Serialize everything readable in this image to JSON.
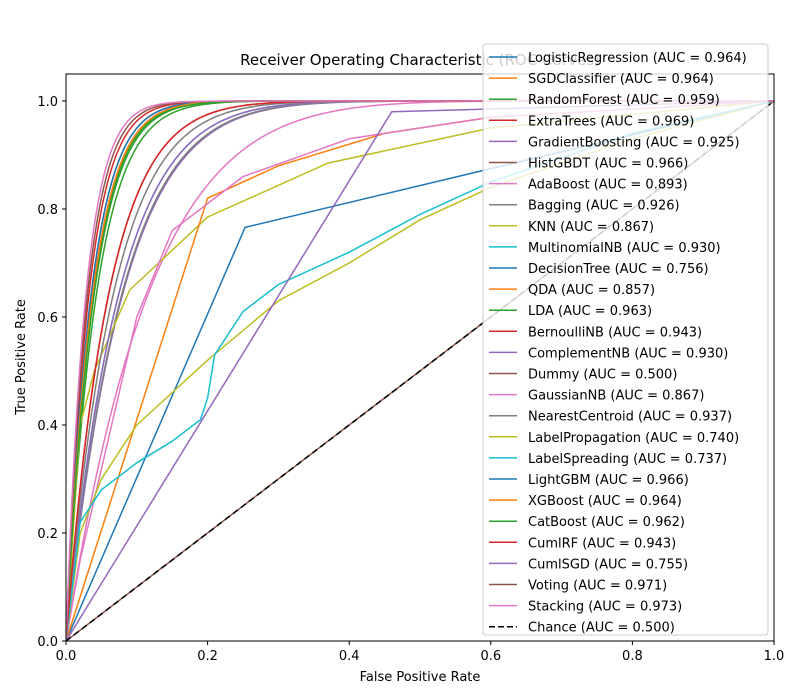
{
  "chart_data": {
    "type": "line",
    "title": "Receiver Operating Characteristic (ROC Curves)",
    "xlabel": "False Positive Rate",
    "ylabel": "True Positive Rate",
    "xlim": [
      0.0,
      1.0
    ],
    "ylim": [
      0.0,
      1.05
    ],
    "xticks": [
      "0.0",
      "0.2",
      "0.4",
      "0.6",
      "0.8",
      "1.0"
    ],
    "yticks": [
      "0.0",
      "0.2",
      "0.4",
      "0.6",
      "0.8",
      "1.0"
    ],
    "grid": false,
    "legend_position": "top-right",
    "series": [
      {
        "name": "LogisticRegression (AUC = 0.964)",
        "color": "#1f77b4",
        "dash": "solid",
        "auc": 0.964
      },
      {
        "name": "SGDClassifier (AUC = 0.964)",
        "color": "#ff7f0e",
        "dash": "solid",
        "auc": 0.964
      },
      {
        "name": "RandomForest (AUC = 0.959)",
        "color": "#2ca02c",
        "dash": "solid",
        "auc": 0.959
      },
      {
        "name": "ExtraTrees (AUC = 0.969)",
        "color": "#d62728",
        "dash": "solid",
        "auc": 0.969
      },
      {
        "name": "GradientBoosting (AUC = 0.925)",
        "color": "#9467bd",
        "dash": "solid",
        "auc": 0.925
      },
      {
        "name": "HistGBDT (AUC = 0.966)",
        "color": "#8c564b",
        "dash": "solid",
        "auc": 0.966
      },
      {
        "name": "AdaBoost (AUC = 0.893)",
        "color": "#e377c2",
        "dash": "solid",
        "auc": 0.893
      },
      {
        "name": "Bagging (AUC = 0.926)",
        "color": "#7f7f7f",
        "dash": "solid",
        "auc": 0.926
      },
      {
        "name": "KNN (AUC = 0.867)",
        "color": "#bcbd22",
        "dash": "solid",
        "points": [
          [
            0,
            0
          ],
          [
            0.02,
            0.4
          ],
          [
            0.04,
            0.5
          ],
          [
            0.09,
            0.65
          ],
          [
            0.2,
            0.785
          ],
          [
            0.37,
            0.885
          ],
          [
            0.6,
            0.95
          ],
          [
            1,
            1
          ]
        ]
      },
      {
        "name": "MultinomialNB (AUC = 0.930)",
        "color": "#17becf",
        "dash": "solid",
        "auc": 0.93
      },
      {
        "name": "DecisionTree (AUC = 0.756)",
        "color": "#1f77b4",
        "dash": "solid",
        "points": [
          [
            0,
            0
          ],
          [
            0.253,
            0.766
          ],
          [
            1,
            1
          ]
        ]
      },
      {
        "name": "QDA (AUC = 0.857)",
        "color": "#ff7f0e",
        "dash": "solid",
        "points": [
          [
            0,
            0
          ],
          [
            0.2,
            0.82
          ],
          [
            0.3,
            0.88
          ],
          [
            0.45,
            0.94
          ],
          [
            0.6,
            0.97
          ],
          [
            1,
            1
          ]
        ]
      },
      {
        "name": "LDA (AUC = 0.963)",
        "color": "#2ca02c",
        "dash": "solid",
        "auc": 0.963
      },
      {
        "name": "BernoulliNB (AUC = 0.943)",
        "color": "#d62728",
        "dash": "solid",
        "auc": 0.943
      },
      {
        "name": "ComplementNB (AUC = 0.930)",
        "color": "#9467bd",
        "dash": "solid",
        "auc": 0.93
      },
      {
        "name": "Dummy (AUC = 0.500)",
        "color": "#8c564b",
        "dash": "solid",
        "points": [
          [
            0,
            0
          ],
          [
            1,
            1
          ]
        ]
      },
      {
        "name": "GaussianNB (AUC = 0.867)",
        "color": "#e377c2",
        "dash": "solid",
        "points": [
          [
            0,
            0
          ],
          [
            0.02,
            0.15
          ],
          [
            0.1,
            0.6
          ],
          [
            0.15,
            0.76
          ],
          [
            0.25,
            0.86
          ],
          [
            0.4,
            0.93
          ],
          [
            0.6,
            0.97
          ],
          [
            1,
            1
          ]
        ]
      },
      {
        "name": "NearestCentroid (AUC = 0.937)",
        "color": "#7f7f7f",
        "dash": "solid",
        "auc": 0.937
      },
      {
        "name": "LabelPropagation (AUC = 0.740)",
        "color": "#bcbd22",
        "dash": "solid",
        "points": [
          [
            0,
            0
          ],
          [
            0.02,
            0.2
          ],
          [
            0.05,
            0.3
          ],
          [
            0.1,
            0.4
          ],
          [
            0.2,
            0.52
          ],
          [
            0.3,
            0.63
          ],
          [
            0.4,
            0.7
          ],
          [
            0.5,
            0.78
          ],
          [
            0.6,
            0.84
          ],
          [
            0.8,
            0.93
          ],
          [
            1,
            1
          ]
        ]
      },
      {
        "name": "LabelSpreading (AUC = 0.737)",
        "color": "#17becf",
        "dash": "solid",
        "points": [
          [
            0,
            0
          ],
          [
            0.02,
            0.22
          ],
          [
            0.05,
            0.28
          ],
          [
            0.1,
            0.33
          ],
          [
            0.15,
            0.37
          ],
          [
            0.19,
            0.41
          ],
          [
            0.2,
            0.45
          ],
          [
            0.21,
            0.53
          ],
          [
            0.25,
            0.61
          ],
          [
            0.3,
            0.66
          ],
          [
            0.4,
            0.72
          ],
          [
            0.5,
            0.79
          ],
          [
            0.6,
            0.85
          ],
          [
            0.8,
            0.94
          ],
          [
            1,
            1
          ]
        ]
      },
      {
        "name": "LightGBM (AUC = 0.966)",
        "color": "#1f77b4",
        "dash": "solid",
        "auc": 0.966
      },
      {
        "name": "XGBoost (AUC = 0.964)",
        "color": "#ff7f0e",
        "dash": "solid",
        "auc": 0.964
      },
      {
        "name": "CatBoost (AUC = 0.962)",
        "color": "#2ca02c",
        "dash": "solid",
        "auc": 0.962
      },
      {
        "name": "CumlRF (AUC = 0.943)",
        "color": "#d62728",
        "dash": "solid",
        "auc": 0.943
      },
      {
        "name": "CumlSGD (AUC = 0.755)",
        "color": "#9467bd",
        "dash": "solid",
        "points": [
          [
            0,
            0
          ],
          [
            0.46,
            0.98
          ],
          [
            1,
            1
          ]
        ]
      },
      {
        "name": "Voting (AUC = 0.971)",
        "color": "#8c564b",
        "dash": "solid",
        "auc": 0.971
      },
      {
        "name": "Stacking (AUC = 0.973)",
        "color": "#e377c2",
        "dash": "solid",
        "auc": 0.973
      },
      {
        "name": "Chance (AUC = 0.500)",
        "color": "#000000",
        "dash": "dashed",
        "points": [
          [
            0,
            0
          ],
          [
            1,
            1
          ]
        ]
      }
    ]
  }
}
